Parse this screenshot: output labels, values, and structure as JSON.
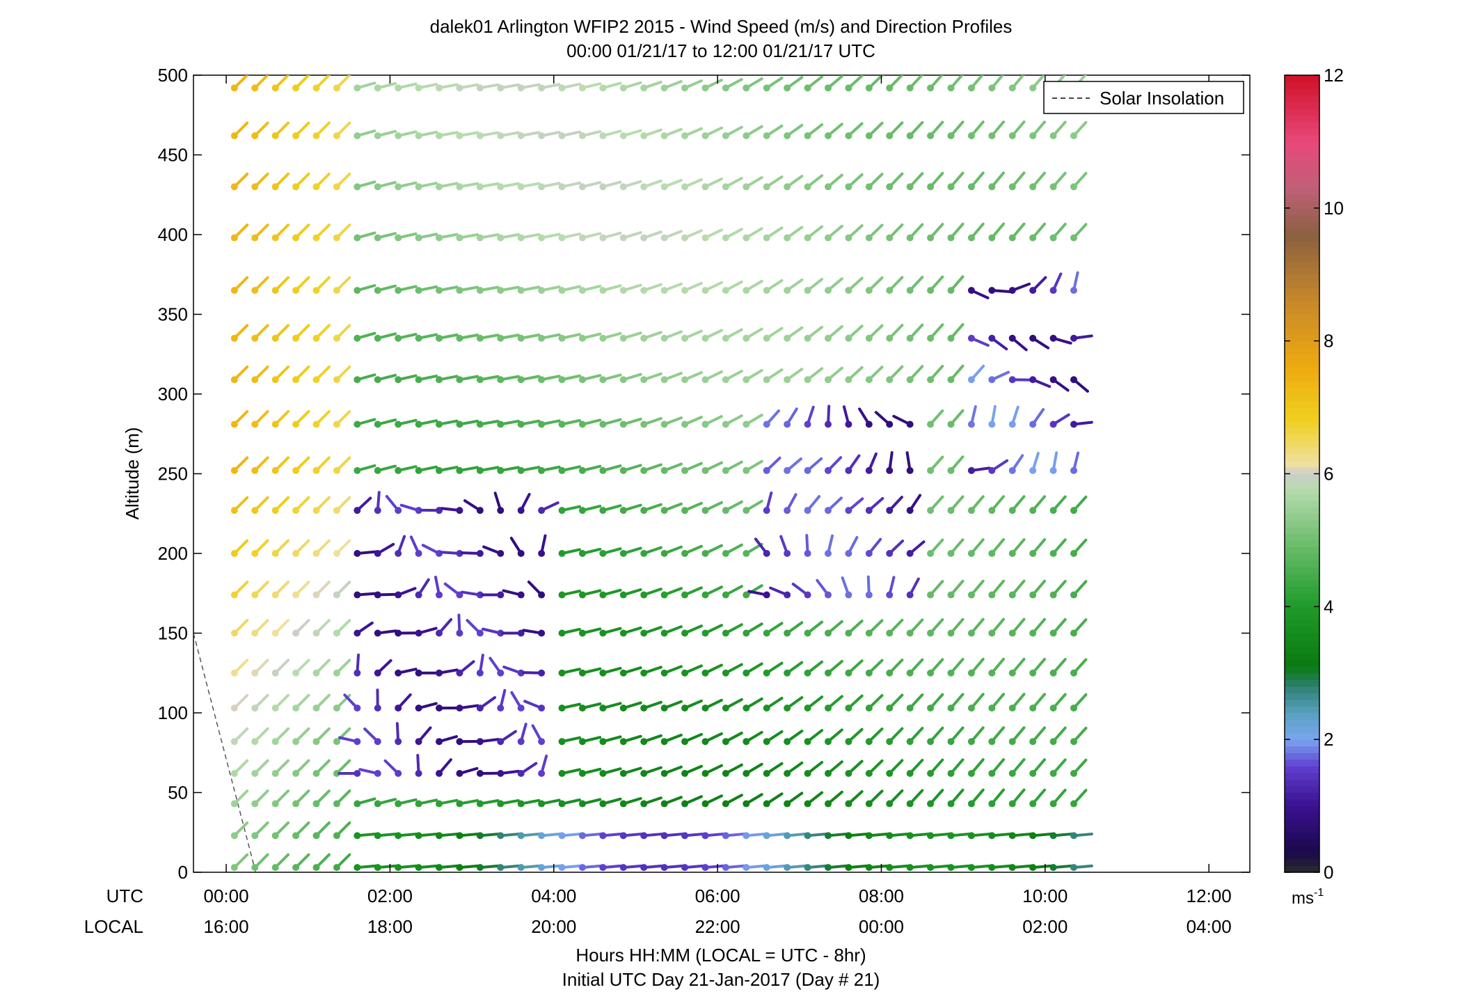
{
  "chart_data": {
    "type": "wind-barb-profile",
    "title_line1": "dalek01 Arlington WFIP2 2015 - Wind Speed (m/s) and Direction Profiles",
    "title_line2": "00:00 01/21/17 to 12:00 01/21/17  UTC",
    "ylabel": "Altitude (m)",
    "ylim": [
      0,
      500
    ],
    "yticks": [
      "0",
      "50",
      "100",
      "150",
      "200",
      "250",
      "300",
      "350",
      "400",
      "450",
      "500"
    ],
    "xlim_hours": [
      -0.4,
      12.5
    ],
    "utc_row_label": "UTC",
    "local_row_label": "LOCAL",
    "xticks_utc": [
      "00:00",
      "02:00",
      "04:00",
      "06:00",
      "08:00",
      "10:00",
      "12:00"
    ],
    "xticks_local": [
      "16:00",
      "18:00",
      "20:00",
      "22:00",
      "00:00",
      "02:00",
      "04:00"
    ],
    "xlabel_line1": "Hours HH:MM  (LOCAL = UTC - 8hr)",
    "xlabel_line2": "Initial UTC Day 21-Jan-2017 (Day # 21)",
    "legend": {
      "label": "Solar Insolation",
      "position": "top-right"
    },
    "colorbar": {
      "unit_base": "ms",
      "unit_exp": "-1",
      "ticks": [
        "0",
        "2",
        "4",
        "6",
        "8",
        "10",
        "12"
      ],
      "range": [
        0,
        12
      ]
    },
    "solar_insolation": {
      "hours": [
        -0.4,
        0.36
      ],
      "altitude": [
        150,
        0
      ]
    },
    "altitudes": [
      3,
      23,
      43,
      62,
      82,
      103,
      125,
      150,
      174,
      200,
      227,
      252,
      281,
      309,
      335,
      365,
      398,
      430,
      462,
      492
    ],
    "hours_step": 0.25,
    "hours_start": 0.1,
    "hours_count": 42
  }
}
